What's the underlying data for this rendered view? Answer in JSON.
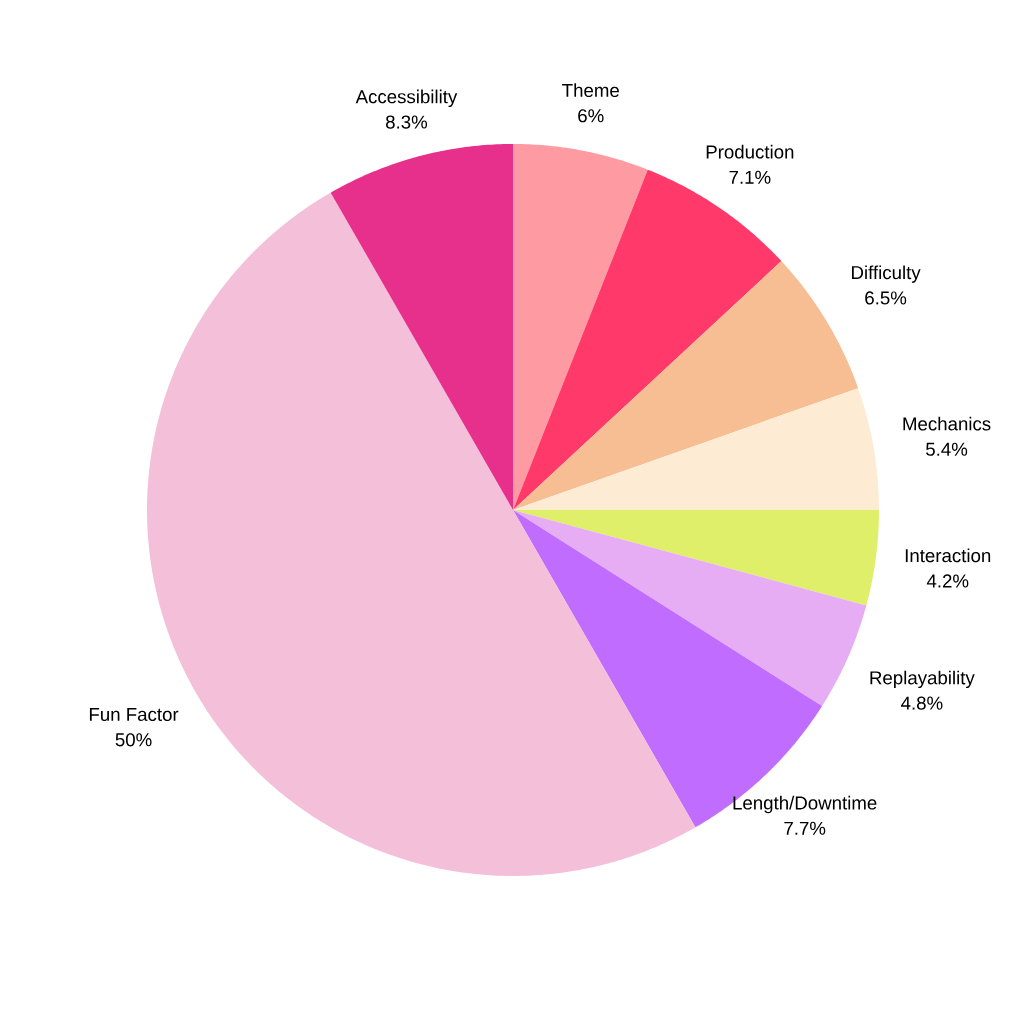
{
  "chart_data": {
    "type": "pie",
    "categories": [
      "Theme",
      "Production",
      "Difficulty",
      "Mechanics",
      "Interaction",
      "Replayability",
      "Length/Downtime",
      "Fun Factor",
      "Accessibility"
    ],
    "values": [
      6,
      7.1,
      6.5,
      5.4,
      4.2,
      4.8,
      7.7,
      50,
      8.3
    ],
    "colors": [
      "#fe9aa2",
      "#ff3a6a",
      "#f7bd93",
      "#fdecd3",
      "#e0ef6a",
      "#e6adf5",
      "#c06dff",
      "#f4bfd8",
      "#e6308c"
    ],
    "value_labels": [
      "6%",
      "7.1%",
      "6.5%",
      "5.4%",
      "4.2%",
      "4.8%",
      "7.7%",
      "50%",
      "8.3%"
    ]
  }
}
